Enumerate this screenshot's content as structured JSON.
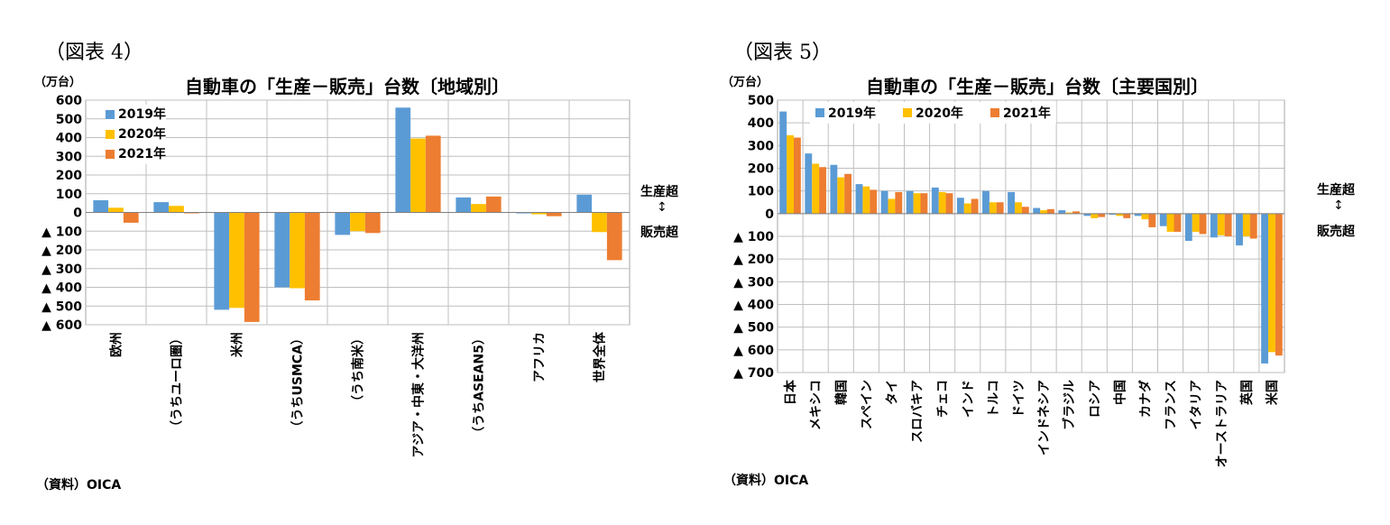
{
  "charts_common": {
    "series_colors": [
      "#5B9BD5",
      "#FFC000",
      "#ED7D31"
    ],
    "side_labels": {
      "top": "生産超",
      "arrow": "↕",
      "bottom": "販売超"
    },
    "source": "（資料）OICA",
    "unit": "（万台）"
  },
  "chart_data": [
    {
      "type": "bar",
      "figure_label": "（図表 4）",
      "title": "自動車の「生産－販売」台数〔地域別〕",
      "ylim": [
        -600,
        600
      ],
      "yticks": [
        600,
        500,
        400,
        300,
        200,
        100,
        0,
        -100,
        -200,
        -300,
        -400,
        -500,
        -600
      ],
      "ytick_labels": [
        "600",
        "500",
        "400",
        "300",
        "200",
        "100",
        "0",
        "▲ 100",
        "▲ 200",
        "▲ 300",
        "▲ 400",
        "▲ 500",
        "▲ 600"
      ],
      "grid": true,
      "legend_placement": "top-left",
      "categories": [
        "欧州",
        "（うちユーロ圏）",
        "米州",
        "（うちUSMCA）",
        "（うち南米）",
        "アジア・中東・大洋州",
        "（うちASEAN5）",
        "アフリカ",
        "世界全体"
      ],
      "series": [
        {
          "name": "2019年",
          "values": [
            65,
            55,
            -520,
            -400,
            -120,
            560,
            80,
            -5,
            95
          ]
        },
        {
          "name": "2020年",
          "values": [
            25,
            35,
            -510,
            -405,
            -100,
            395,
            45,
            -10,
            -105
          ]
        },
        {
          "name": "2021年",
          "values": [
            -55,
            -5,
            -585,
            -470,
            -110,
            410,
            85,
            -20,
            -255
          ]
        }
      ]
    },
    {
      "type": "bar",
      "figure_label": "（図表 5）",
      "title": "自動車の「生産－販売」台数〔主要国別〕",
      "ylim": [
        -700,
        500
      ],
      "yticks": [
        500,
        400,
        300,
        200,
        100,
        0,
        -100,
        -200,
        -300,
        -400,
        -500,
        -600,
        -700
      ],
      "ytick_labels": [
        "500",
        "400",
        "300",
        "200",
        "100",
        "0",
        "▲ 100",
        "▲ 200",
        "▲ 300",
        "▲ 400",
        "▲ 500",
        "▲ 600",
        "▲ 700"
      ],
      "grid": true,
      "legend_placement": "top-center",
      "categories": [
        "日本",
        "メキシコ",
        "韓国",
        "スペイン",
        "タイ",
        "スロバキア",
        "チェコ",
        "インド",
        "トルコ",
        "ドイツ",
        "インドネシア",
        "ブラジル",
        "ロシア",
        "中国",
        "カナダ",
        "フランス",
        "イタリア",
        "オーストラリア",
        "英国",
        "米国"
      ],
      "series": [
        {
          "name": "2019年",
          "values": [
            450,
            265,
            215,
            130,
            100,
            100,
            115,
            70,
            100,
            95,
            25,
            15,
            -10,
            -5,
            -10,
            -55,
            -120,
            -105,
            -140,
            -660
          ]
        },
        {
          "name": "2020年",
          "values": [
            345,
            220,
            160,
            120,
            65,
            90,
            95,
            45,
            50,
            50,
            15,
            5,
            -20,
            -10,
            -25,
            -80,
            -80,
            -95,
            -100,
            -610
          ]
        },
        {
          "name": "2021年",
          "values": [
            335,
            205,
            175,
            105,
            95,
            90,
            90,
            65,
            50,
            30,
            20,
            10,
            -15,
            -20,
            -60,
            -80,
            -90,
            -100,
            -110,
            -625
          ]
        }
      ]
    }
  ]
}
